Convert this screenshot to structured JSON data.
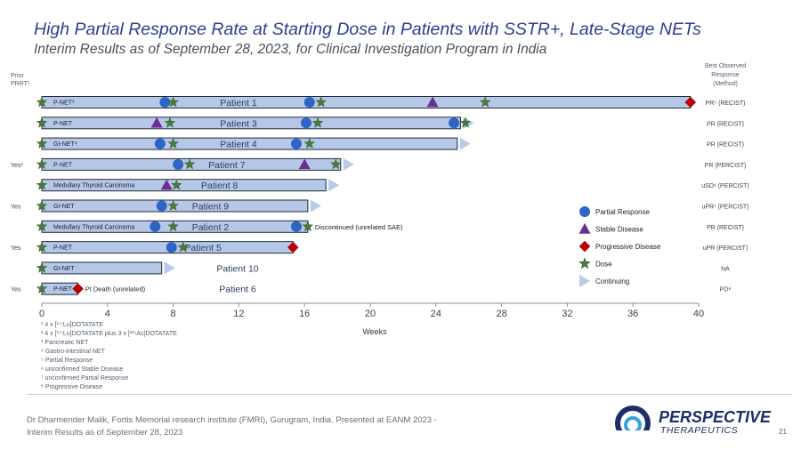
{
  "header": {
    "title": "High Partial Response Rate at Starting Dose in Patients with SSTR+, Late-Stage NETs",
    "subtitle": "Interim Results as of September 28, 2023, for Clinical Investigation Program in India"
  },
  "labels": {
    "prior_prrt": "Prior PRRT¹",
    "best_response": "Best Observed Response (Method)"
  },
  "colors": {
    "bar_fill": "#b6c7e8",
    "bar_stroke": "#1f2d3d",
    "partial": "#2e64c8",
    "stable": "#6c2d91",
    "progressive": "#c00000",
    "dose": "#4a7a3a",
    "continuing": "#b9cbe8"
  },
  "chart_data": {
    "type": "swimmer",
    "xlabel": "Weeks",
    "xlim": [
      0,
      40
    ],
    "xticks": [
      0,
      4,
      8,
      12,
      16,
      20,
      24,
      28,
      32,
      36,
      40
    ],
    "patients": [
      {
        "name": "Patient 1",
        "tumor": "P-NET³",
        "prior_prrt": "",
        "end": 39.5,
        "continuing": false,
        "dose": [
          0,
          8,
          17,
          27
        ],
        "partial": [
          7.5,
          16.3
        ],
        "stable": [
          23.8
        ],
        "progressive": [
          39.5
        ],
        "response": "PR⁵ (RECIST)",
        "note": ""
      },
      {
        "name": "Patient 3",
        "tumor": "P-NET",
        "prior_prrt": "",
        "end": 25.5,
        "continuing": true,
        "dose": [
          0,
          7.8,
          16.8,
          25.8
        ],
        "partial": [
          16.1,
          25.1
        ],
        "stable": [
          7.0
        ],
        "progressive": [],
        "response": "PR (RECIST)",
        "note": ""
      },
      {
        "name": "Patient 4",
        "tumor": "GI-NET⁴",
        "prior_prrt": "",
        "end": 25.3,
        "continuing": true,
        "dose": [
          0,
          8,
          16.3
        ],
        "partial": [
          7.2,
          15.5
        ],
        "stable": [],
        "progressive": [],
        "response": "PR (RECIST)",
        "note": ""
      },
      {
        "name": "Patient 7",
        "tumor": "P-NET",
        "prior_prrt": "Yes²",
        "end": 18.2,
        "continuing": true,
        "dose": [
          0,
          9,
          17.9
        ],
        "partial": [
          8.3
        ],
        "stable": [
          16
        ],
        "progressive": [],
        "response": "PR (PERCIST)",
        "note": ""
      },
      {
        "name": "Patient 8",
        "tumor": "Medullary Thyroid Carcinoma",
        "prior_prrt": "",
        "end": 17.3,
        "continuing": true,
        "dose": [
          0,
          8.2
        ],
        "partial": [],
        "stable": [
          7.6
        ],
        "progressive": [],
        "response": "uSD⁶ (PERCIST)",
        "note": ""
      },
      {
        "name": "Patient 9",
        "tumor": "GI-NET",
        "prior_prrt": "Yes",
        "end": 16.2,
        "continuing": true,
        "dose": [
          0,
          8
        ],
        "partial": [
          7.3
        ],
        "stable": [],
        "progressive": [],
        "response": "uPR⁷ (PERCIST)",
        "note": ""
      },
      {
        "name": "Patient 2",
        "tumor": "Medullary Thyroid Carcinoma",
        "prior_prrt": "",
        "end": 16.2,
        "continuing": false,
        "dose": [
          0,
          8,
          16.2
        ],
        "partial": [
          6.9,
          15.5
        ],
        "stable": [],
        "progressive": [],
        "response": "PR (RECIST)",
        "note": "Discontinued (unrelated SAE)"
      },
      {
        "name": "Patient 5",
        "tumor": "P-NET",
        "prior_prrt": "Yes",
        "end": 15.3,
        "continuing": false,
        "dose": [
          0,
          8.6
        ],
        "partial": [
          7.9
        ],
        "stable": [],
        "progressive": [
          15.3
        ],
        "response": "uPR (PERCIST)",
        "note": ""
      },
      {
        "name": "Patient 10",
        "tumor": "GI-NET",
        "prior_prrt": "",
        "end": 7.3,
        "continuing": true,
        "dose": [
          0
        ],
        "partial": [],
        "stable": [],
        "progressive": [],
        "response": "NA",
        "note": ""
      },
      {
        "name": "Patient 6",
        "tumor": "P-NET",
        "prior_prrt": "Yes",
        "end": 2.2,
        "continuing": false,
        "dose": [
          0
        ],
        "partial": [],
        "stable": [],
        "progressive": [
          2.2
        ],
        "response": "PD⁸",
        "note": "Pt Death (unrelated)"
      }
    ],
    "legend": [
      {
        "key": "partial",
        "label": "Partial Response"
      },
      {
        "key": "stable",
        "label": "Stable Disease"
      },
      {
        "key": "progressive",
        "label": "Progressive Disease"
      },
      {
        "key": "dose",
        "label": "Dose"
      },
      {
        "key": "continuing",
        "label": "Continuing"
      }
    ]
  },
  "footnotes": [
    "¹ 4 x [¹⁷⁷Lu]DOTATATE",
    "² 4 x [¹⁷⁷Lu]DOTATATE plus 3 x [²²⁵Ac]DOTATATE",
    "³ Pancreatic NET",
    "⁴ Gastro-intestinal NET",
    "⁵ Partial Response",
    "⁶ unconfirmed Stable Disease",
    "⁷ unconfirmed Partial Response",
    "⁸ Progressive Disease"
  ],
  "footer": {
    "citation": "Dr Dharmender Malik, Fortis Memorial research institute (FMRI), Gurugram, India. Presented at EANM 2023 - Interim Results as of September 28, 2023",
    "page_number": "21",
    "logo_name": "PERSPECTIVE",
    "logo_sub": "THERAPEUTICS"
  }
}
